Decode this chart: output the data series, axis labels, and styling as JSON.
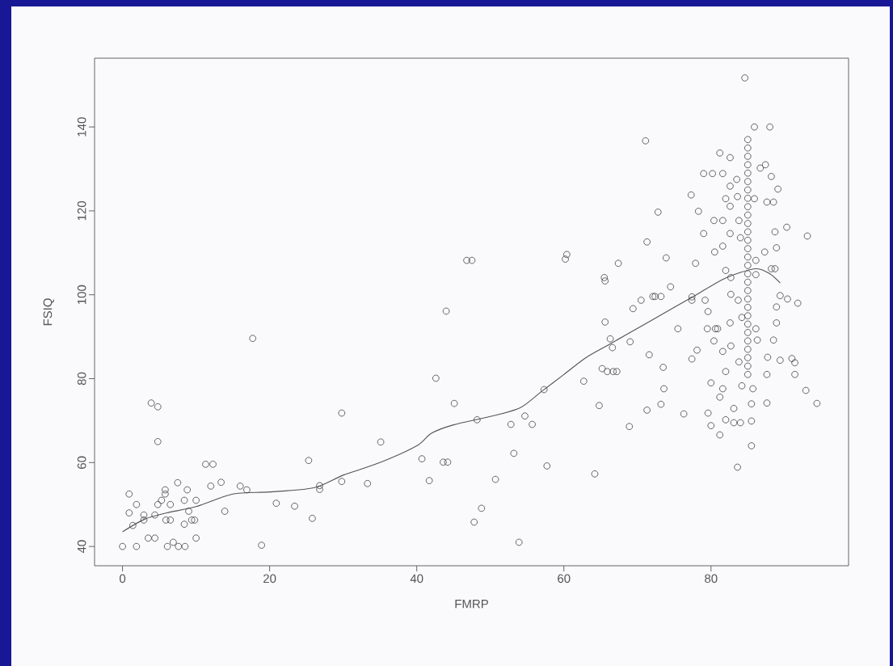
{
  "chart_data": {
    "type": "scatter",
    "xlabel": "FMRP",
    "ylabel": "FSIQ",
    "xlim": [
      -3.8,
      98.7
    ],
    "ylim": [
      35.4,
      156.4
    ],
    "xticks": [
      0,
      20,
      40,
      60,
      80
    ],
    "yticks": [
      40,
      60,
      80,
      100,
      120,
      140
    ],
    "grid": false,
    "series": [
      {
        "marker": "circle",
        "color": "#404040",
        "x": [
          0,
          0.9,
          0.9,
          1.4,
          1.9,
          1.9,
          2.9,
          2.9,
          3.5,
          4.4,
          3.9,
          4.8,
          4.8,
          4.4,
          4.8,
          5.3,
          5.8,
          5.8,
          5.9,
          6.1,
          6.5,
          6.5,
          6.9,
          7.5,
          7.6,
          8.5,
          8.4,
          8.4,
          8.8,
          9,
          9.4,
          9.8,
          10,
          10,
          11.3,
          12.3,
          12,
          13.4,
          13.9,
          16,
          16.9,
          17.7,
          18.9,
          20.9,
          23.4,
          25.3,
          25.8,
          26.8,
          26.8,
          29.8,
          29.8,
          33.3,
          35.1,
          40.7,
          41.7,
          42.6,
          43.6,
          44.2,
          45.1,
          44,
          46.8,
          47.5,
          47.8,
          48.2,
          48.8,
          50.7,
          52.8,
          53.2,
          53.9,
          54.7,
          55.7,
          57.3,
          57.7,
          60.2,
          60.4,
          62.7,
          64.2,
          64.8,
          65.2,
          65.6,
          65.5,
          65.6,
          65.9,
          66.3,
          66.6,
          66.7,
          67.2,
          67.4,
          68.9,
          69,
          69.4,
          70.5,
          71.1,
          71.3,
          71.6,
          71.3,
          72.1,
          72.4,
          72.8,
          73.2,
          73.2,
          73.5,
          73.6,
          73.9,
          74.5,
          75.5,
          76.3,
          77.3,
          77.4,
          77.4,
          77.4,
          77.9,
          78.1,
          78.3,
          79,
          79,
          79.2,
          79.5,
          79.6,
          79.6,
          80,
          80,
          80.2,
          80.4,
          80.5,
          80.4,
          80.6,
          80.9,
          81.2,
          81.2,
          81.6,
          82,
          81.6,
          81.6,
          82,
          81.6,
          82,
          81.6,
          81.2,
          82,
          82.6,
          82.6,
          82.6,
          82.6,
          82.7,
          82.7,
          82.6,
          82.7,
          83.1,
          83.1,
          83.5,
          83.6,
          83.8,
          84,
          83.7,
          83.8,
          84,
          83.6,
          84.2,
          84.2,
          84.6,
          85,
          85,
          85,
          85,
          85,
          85,
          85,
          85,
          85,
          85,
          85,
          85,
          85,
          85,
          85,
          85,
          85,
          85,
          85,
          85,
          85,
          85,
          85,
          85,
          85,
          85,
          85,
          85,
          85,
          85.5,
          85.5,
          85.5,
          85.7,
          85.9,
          85.9,
          86.1,
          86.3,
          86.1,
          86.1,
          86.7,
          87.4,
          87.3,
          87.7,
          87.6,
          87.6,
          88,
          88.2,
          87.6,
          88.5,
          88.2,
          88.7,
          88.5,
          88.9,
          88.7,
          89.1,
          88.9,
          88.9,
          89.4,
          89.4,
          90.3,
          90.4,
          91,
          91.4,
          91.4,
          91.8,
          92.9,
          93.1,
          94.4
        ],
        "values": [
          40,
          52.5,
          48,
          45,
          50,
          40,
          46.3,
          47.5,
          42,
          42,
          74.2,
          73.3,
          65,
          47.5,
          50,
          51,
          53.5,
          52.5,
          46.3,
          40,
          50,
          46.3,
          41,
          55.2,
          40,
          40,
          51,
          45.3,
          53.5,
          48.4,
          46.3,
          46.3,
          51,
          42,
          59.6,
          59.6,
          54.4,
          55.3,
          48.4,
          54.4,
          53.5,
          89.6,
          40.3,
          50.3,
          49.6,
          60.5,
          46.7,
          54.5,
          53.6,
          55.5,
          71.8,
          55,
          64.9,
          60.9,
          55.7,
          80.1,
          60.1,
          60.1,
          74.1,
          96.1,
          108.2,
          108.2,
          45.8,
          70.2,
          49.1,
          56,
          69.1,
          62.2,
          41,
          71.1,
          69.1,
          77.4,
          59.2,
          108.5,
          109.6,
          79.4,
          57.3,
          73.6,
          82.4,
          93.5,
          104.1,
          103.3,
          81.7,
          89.5,
          87.4,
          81.7,
          81.7,
          107.5,
          68.6,
          88.8,
          96.7,
          98.7,
          136.7,
          112.6,
          85.7,
          72.5,
          99.6,
          99.6,
          119.7,
          99.6,
          73.9,
          82.7,
          77.6,
          108.8,
          101.9,
          91.9,
          71.6,
          123.8,
          99.5,
          98.7,
          84.7,
          107.5,
          86.8,
          119.9,
          128.9,
          114.6,
          98.7,
          91.9,
          96,
          71.8,
          68.8,
          79,
          128.9,
          117.7,
          110.2,
          89,
          91.9,
          91.9,
          66.6,
          133.8,
          128.9,
          122.9,
          117.7,
          111.6,
          105.8,
          86.5,
          81.7,
          77.6,
          75.6,
          70.2,
          132.7,
          125.9,
          121.1,
          114.6,
          104.1,
          100.1,
          93.3,
          87.8,
          72.9,
          69.5,
          127.5,
          123.4,
          117.7,
          113.6,
          98.7,
          84,
          69.5,
          58.9,
          94.6,
          78.3,
          151.7,
          137,
          135,
          133,
          131,
          129,
          127,
          125,
          123,
          121,
          119,
          117,
          115,
          113,
          111,
          109,
          107,
          105,
          103,
          101,
          99,
          97,
          95,
          93,
          91,
          89,
          87,
          85,
          83,
          81,
          64,
          69.9,
          74,
          77.6,
          140,
          122.9,
          91.9,
          89.2,
          104.8,
          108.2,
          130.2,
          131,
          110.2,
          85.1,
          81,
          74.2,
          140,
          128.2,
          122.1,
          122.1,
          106.2,
          106.2,
          89.2,
          111.2,
          115,
          125.2,
          97.1,
          93.3,
          99.8,
          84.4,
          116.1,
          99,
          84.8,
          83.8,
          81,
          98,
          77.2,
          114,
          74.1
        ]
      },
      {
        "type": "line",
        "color": "#555555",
        "x": [
          0,
          3,
          6,
          10,
          15,
          20,
          26,
          30,
          35,
          40,
          42,
          45,
          50,
          54,
          57,
          60,
          63,
          66,
          70,
          75,
          78,
          82,
          86,
          88,
          89.4
        ],
        "values": [
          43.5,
          46.5,
          48,
          49.5,
          52.5,
          53,
          54,
          57,
          60,
          64,
          67,
          69,
          71,
          73,
          77,
          81,
          85,
          88,
          92,
          97,
          100,
          104,
          106.2,
          105,
          102.8
        ]
      }
    ]
  }
}
